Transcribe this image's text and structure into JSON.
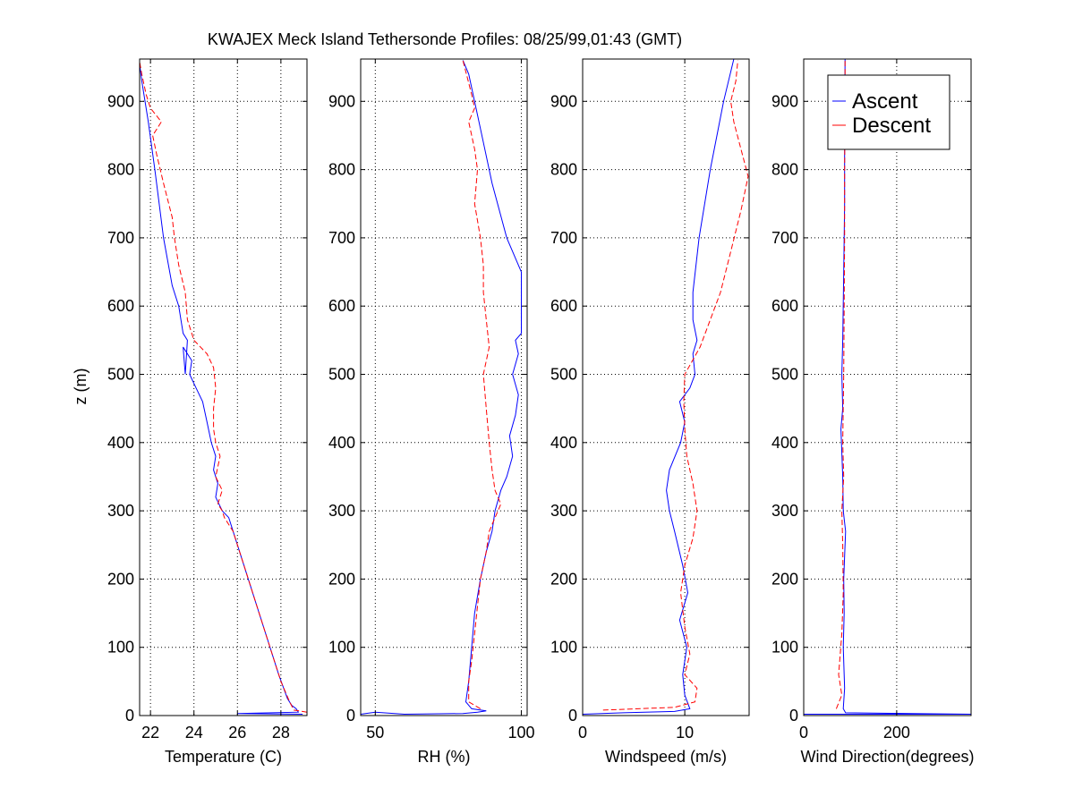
{
  "chart_data": [
    {
      "type": "line",
      "id": "temperature",
      "title": "KWAJEX Meck Island Tethersonde Profiles: 08/25/99,01:43 (GMT)",
      "xlabel": "Temperature (C)",
      "ylabel": "z (m)",
      "xlim": [
        21.5,
        29.2
      ],
      "ylim": [
        0,
        962
      ],
      "xticks": [
        22,
        24,
        26,
        28
      ],
      "xtick_labels": [
        "22",
        "24",
        "26",
        "28"
      ],
      "yticks": [
        0,
        100,
        200,
        300,
        400,
        500,
        600,
        700,
        800,
        900
      ],
      "ytick_labels": [
        "0",
        "100",
        "200",
        "300",
        "400",
        "500",
        "600",
        "700",
        "800",
        "900"
      ],
      "grid": true,
      "series": [
        {
          "name": "Ascent",
          "color": "#0000ff",
          "style": "solid",
          "points": [
            [
              29.0,
              2
            ],
            [
              26.0,
              3
            ],
            [
              28.8,
              5
            ],
            [
              28.7,
              10
            ],
            [
              28.5,
              15
            ],
            [
              28.3,
              25
            ],
            [
              27.9,
              60
            ],
            [
              27.4,
              110
            ],
            [
              26.9,
              160
            ],
            [
              26.4,
              210
            ],
            [
              26.0,
              250
            ],
            [
              25.6,
              290
            ],
            [
              25.3,
              300
            ],
            [
              25.0,
              320
            ],
            [
              25.1,
              340
            ],
            [
              24.9,
              360
            ],
            [
              25.0,
              380
            ],
            [
              24.8,
              400
            ],
            [
              24.6,
              430
            ],
            [
              24.4,
              460
            ],
            [
              24.1,
              480
            ],
            [
              23.8,
              500
            ],
            [
              23.9,
              520
            ],
            [
              23.5,
              540
            ],
            [
              23.6,
              500
            ],
            [
              23.7,
              550
            ],
            [
              23.5,
              560
            ],
            [
              23.3,
              600
            ],
            [
              23.0,
              630
            ],
            [
              22.6,
              700
            ],
            [
              22.2,
              800
            ],
            [
              21.9,
              870
            ],
            [
              21.6,
              930
            ],
            [
              21.5,
              955
            ]
          ]
        },
        {
          "name": "Descent",
          "color": "#ff0000",
          "style": "dashed",
          "points": [
            [
              29.2,
              5
            ],
            [
              28.6,
              8
            ],
            [
              28.4,
              20
            ],
            [
              28.0,
              50
            ],
            [
              27.6,
              90
            ],
            [
              27.2,
              130
            ],
            [
              26.8,
              170
            ],
            [
              26.3,
              220
            ],
            [
              25.8,
              270
            ],
            [
              25.4,
              290
            ],
            [
              25.3,
              300
            ],
            [
              25.1,
              310
            ],
            [
              25.3,
              330
            ],
            [
              25.0,
              350
            ],
            [
              25.2,
              380
            ],
            [
              25.0,
              400
            ],
            [
              24.9,
              420
            ],
            [
              24.9,
              450
            ],
            [
              25.0,
              480
            ],
            [
              24.9,
              510
            ],
            [
              24.6,
              530
            ],
            [
              24.0,
              550
            ],
            [
              23.7,
              580
            ],
            [
              23.6,
              620
            ],
            [
              23.3,
              660
            ],
            [
              23.1,
              700
            ],
            [
              23.0,
              730
            ],
            [
              22.6,
              780
            ],
            [
              22.3,
              820
            ],
            [
              22.1,
              850
            ],
            [
              22.5,
              870
            ],
            [
              22.0,
              890
            ],
            [
              21.8,
              910
            ],
            [
              21.6,
              940
            ],
            [
              21.5,
              958
            ]
          ]
        }
      ]
    },
    {
      "type": "line",
      "id": "rh",
      "xlabel": "RH (%)",
      "xlim": [
        45,
        102
      ],
      "ylim": [
        0,
        962
      ],
      "xticks": [
        50,
        100
      ],
      "xtick_labels": [
        "50",
        "100"
      ],
      "yticks": [
        0,
        100,
        200,
        300,
        400,
        500,
        600,
        700,
        800,
        900
      ],
      "ytick_labels": [
        "0",
        "100",
        "200",
        "300",
        "400",
        "500",
        "600",
        "700",
        "800",
        "900"
      ],
      "grid": true,
      "series": [
        {
          "name": "Ascent",
          "color": "#0000ff",
          "style": "solid",
          "points": [
            [
              45,
              2
            ],
            [
              50,
              5
            ],
            [
              60,
              2
            ],
            [
              80,
              3
            ],
            [
              85,
              5
            ],
            [
              88,
              7
            ],
            [
              83,
              10
            ],
            [
              81,
              20
            ],
            [
              82,
              50
            ],
            [
              83,
              100
            ],
            [
              84,
              150
            ],
            [
              86,
              200
            ],
            [
              88,
              240
            ],
            [
              90,
              270
            ],
            [
              91,
              300
            ],
            [
              93,
              330
            ],
            [
              95,
              350
            ],
            [
              97,
              380
            ],
            [
              96,
              410
            ],
            [
              98,
              440
            ],
            [
              99,
              470
            ],
            [
              97,
              500
            ],
            [
              99,
              530
            ],
            [
              98,
              550
            ],
            [
              100,
              560
            ],
            [
              100,
              600
            ],
            [
              100,
              650
            ],
            [
              95,
              700
            ],
            [
              90,
              780
            ],
            [
              86,
              860
            ],
            [
              82,
              940
            ],
            [
              80,
              960
            ]
          ]
        },
        {
          "name": "Descent",
          "color": "#ff0000",
          "style": "dashed",
          "points": [
            [
              86,
              10
            ],
            [
              82,
              20
            ],
            [
              82,
              50
            ],
            [
              83,
              80
            ],
            [
              84,
              120
            ],
            [
              85,
              160
            ],
            [
              86,
              200
            ],
            [
              88,
              240
            ],
            [
              89,
              270
            ],
            [
              92,
              300
            ],
            [
              93,
              310
            ],
            [
              91,
              330
            ],
            [
              90,
              360
            ],
            [
              89,
              400
            ],
            [
              88,
              450
            ],
            [
              87,
              500
            ],
            [
              89,
              540
            ],
            [
              88,
              580
            ],
            [
              87,
              620
            ],
            [
              87,
              660
            ],
            [
              86,
              700
            ],
            [
              84,
              750
            ],
            [
              85,
              800
            ],
            [
              84,
              830
            ],
            [
              82,
              870
            ],
            [
              84,
              890
            ],
            [
              83,
              910
            ],
            [
              80,
              960
            ]
          ]
        }
      ]
    },
    {
      "type": "line",
      "id": "windspeed",
      "xlabel": "Windspeed (m/s)",
      "xlim": [
        0,
        16.3
      ],
      "ylim": [
        0,
        962
      ],
      "xticks": [
        0,
        10
      ],
      "xtick_labels": [
        "0",
        "10"
      ],
      "yticks": [
        0,
        100,
        200,
        300,
        400,
        500,
        600,
        700,
        800,
        900
      ],
      "ytick_labels": [
        "0",
        "100",
        "200",
        "300",
        "400",
        "500",
        "600",
        "700",
        "800",
        "900"
      ],
      "grid": true,
      "series": [
        {
          "name": "Ascent",
          "color": "#0000ff",
          "style": "solid",
          "points": [
            [
              0,
              2
            ],
            [
              4,
              4
            ],
            [
              9,
              6
            ],
            [
              10.5,
              10
            ],
            [
              10,
              30
            ],
            [
              9.8,
              60
            ],
            [
              10.2,
              100
            ],
            [
              9.5,
              140
            ],
            [
              10.3,
              180
            ],
            [
              9.8,
              220
            ],
            [
              9,
              270
            ],
            [
              8.5,
              300
            ],
            [
              8.2,
              330
            ],
            [
              8.5,
              360
            ],
            [
              9.6,
              400
            ],
            [
              10,
              430
            ],
            [
              9.5,
              460
            ],
            [
              10.5,
              480
            ],
            [
              11,
              500
            ],
            [
              10.8,
              530
            ],
            [
              11.2,
              550
            ],
            [
              10.8,
              580
            ],
            [
              10.8,
              620
            ],
            [
              11.4,
              700
            ],
            [
              12.5,
              800
            ],
            [
              13.8,
              900
            ],
            [
              14.8,
              962
            ]
          ]
        },
        {
          "name": "Descent",
          "color": "#ff0000",
          "style": "dashed",
          "points": [
            [
              2,
              8
            ],
            [
              9,
              12
            ],
            [
              11,
              20
            ],
            [
              11.2,
              40
            ],
            [
              10,
              60
            ],
            [
              10.5,
              90
            ],
            [
              10,
              130
            ],
            [
              9.6,
              180
            ],
            [
              10,
              220
            ],
            [
              10.8,
              260
            ],
            [
              11.2,
              300
            ],
            [
              10.8,
              340
            ],
            [
              10.2,
              380
            ],
            [
              10,
              420
            ],
            [
              9.9,
              460
            ],
            [
              10,
              500
            ],
            [
              11.5,
              540
            ],
            [
              12.5,
              580
            ],
            [
              13.5,
              620
            ],
            [
              14.5,
              680
            ],
            [
              15.5,
              740
            ],
            [
              16.2,
              790
            ],
            [
              15.5,
              830
            ],
            [
              14.8,
              870
            ],
            [
              14.5,
              900
            ],
            [
              15,
              930
            ],
            [
              15.2,
              960
            ]
          ]
        }
      ]
    },
    {
      "type": "line",
      "id": "winddir",
      "xlabel": "Wind Direction(degrees)",
      "xlim": [
        0,
        360
      ],
      "ylim": [
        0,
        962
      ],
      "xticks": [
        0,
        200
      ],
      "xtick_labels": [
        "0",
        "200"
      ],
      "yticks": [
        0,
        100,
        200,
        300,
        400,
        500,
        600,
        700,
        800,
        900
      ],
      "ytick_labels": [
        "0",
        "100",
        "200",
        "300",
        "400",
        "500",
        "600",
        "700",
        "800",
        "900"
      ],
      "grid": true,
      "legend": {
        "position": "top-right",
        "entries": [
          "Ascent",
          "Descent"
        ]
      },
      "series": [
        {
          "name": "Ascent",
          "color": "#0000ff",
          "style": "solid",
          "points": [
            [
              0,
              2
            ],
            [
              360,
              2
            ],
            [
              90,
              4
            ],
            [
              85,
              10
            ],
            [
              88,
              40
            ],
            [
              85,
              100
            ],
            [
              87,
              150
            ],
            [
              86,
              200
            ],
            [
              90,
              270
            ],
            [
              85,
              300
            ],
            [
              84,
              350
            ],
            [
              80,
              420
            ],
            [
              84,
              450
            ],
            [
              82,
              500
            ],
            [
              84,
              550
            ],
            [
              86,
              650
            ],
            [
              88,
              750
            ],
            [
              88,
              850
            ],
            [
              89,
              962
            ]
          ]
        },
        {
          "name": "Descent",
          "color": "#ff0000",
          "style": "dashed",
          "points": [
            [
              70,
              10
            ],
            [
              82,
              30
            ],
            [
              75,
              60
            ],
            [
              82,
              120
            ],
            [
              85,
              180
            ],
            [
              84,
              250
            ],
            [
              82,
              300
            ],
            [
              86,
              350
            ],
            [
              84,
              400
            ],
            [
              86,
              500
            ],
            [
              87,
              600
            ],
            [
              88,
              700
            ],
            [
              88,
              800
            ],
            [
              89,
              900
            ],
            [
              89,
              962
            ]
          ]
        }
      ]
    }
  ]
}
